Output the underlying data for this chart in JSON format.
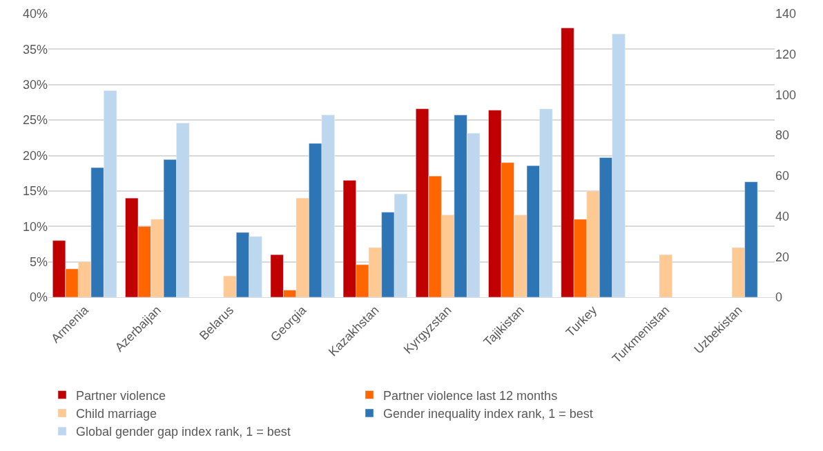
{
  "chart_data": {
    "type": "bar",
    "categories": [
      "Armenia",
      "Azerbaijan",
      "Belarus",
      "Georgia",
      "Kazakhstan",
      "Kyrgyzstan",
      "Tajikistan",
      "Turkey",
      "Turkmenistan",
      "Uzbekistan"
    ],
    "series": [
      {
        "name": "Partner violence",
        "color": "#c00000",
        "values": [
          8,
          14,
          null,
          6,
          16.5,
          26.6,
          26.4,
          38,
          null,
          null
        ]
      },
      {
        "name": "Partner violence last 12 months",
        "color": "#ff6600",
        "values": [
          4,
          10,
          null,
          1,
          4.6,
          17.1,
          19,
          11,
          null,
          null
        ]
      },
      {
        "name": "Child marriage",
        "color": "#ffc993",
        "values": [
          5,
          11,
          3,
          14,
          7,
          11.6,
          11.6,
          15,
          6,
          7
        ]
      },
      {
        "name": "Gender inequality index rank, 1 = best",
        "color": "#2e75b6",
        "axis": "y2",
        "values": [
          64,
          68,
          32,
          76,
          42,
          90,
          65,
          69,
          null,
          57
        ]
      },
      {
        "name": "Global gender gap index rank, 1 = best",
        "color": "#bdd7ee",
        "axis": "y2",
        "values": [
          102,
          86,
          30,
          90,
          51,
          81,
          93,
          130,
          null,
          null
        ]
      }
    ],
    "ylim": [
      0,
      40
    ],
    "yticks": [
      {
        "value": 0,
        "label": "0%"
      },
      {
        "value": 5,
        "label": "5%"
      },
      {
        "value": 10,
        "label": "10%"
      },
      {
        "value": 15,
        "label": "15%"
      },
      {
        "value": 20,
        "label": "20%"
      },
      {
        "value": 25,
        "label": "25%"
      },
      {
        "value": 30,
        "label": "30%"
      },
      {
        "value": 35,
        "label": "35%"
      },
      {
        "value": 40,
        "label": "40%"
      }
    ],
    "y2lim": [
      0,
      140
    ],
    "y2ticks": [
      0,
      20,
      40,
      60,
      80,
      100,
      120,
      140
    ],
    "grid": "y",
    "legend": "bottom"
  }
}
